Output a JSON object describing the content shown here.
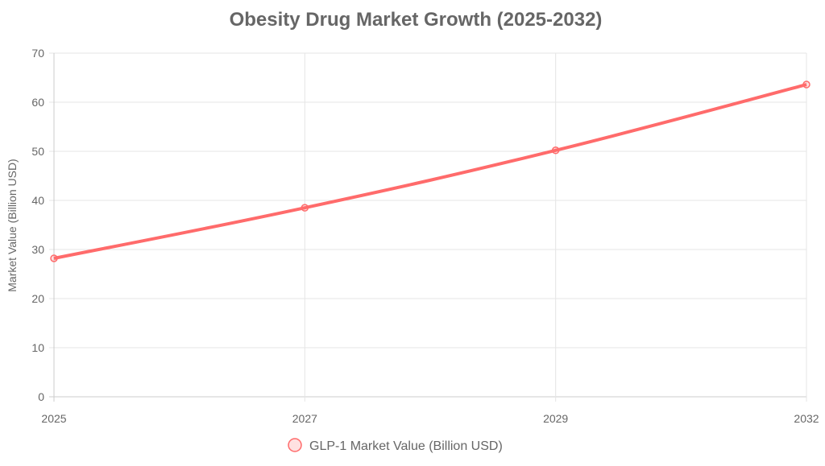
{
  "chart_data": {
    "type": "line",
    "title": "Obesity Drug Market Growth (2025-2032)",
    "xlabel": "",
    "ylabel": "Market Value (Billion USD)",
    "categories": [
      "2025",
      "2027",
      "2029",
      "2032"
    ],
    "series": [
      {
        "name": "GLP-1 Market Value (Billion USD)",
        "values": [
          28.2,
          38.5,
          50.2,
          63.6
        ],
        "color": "#ff6b6b"
      }
    ],
    "ylim": [
      0,
      70
    ],
    "yticks": [
      0,
      10,
      20,
      30,
      40,
      50,
      60,
      70
    ],
    "grid": true,
    "legend_position": "bottom"
  }
}
